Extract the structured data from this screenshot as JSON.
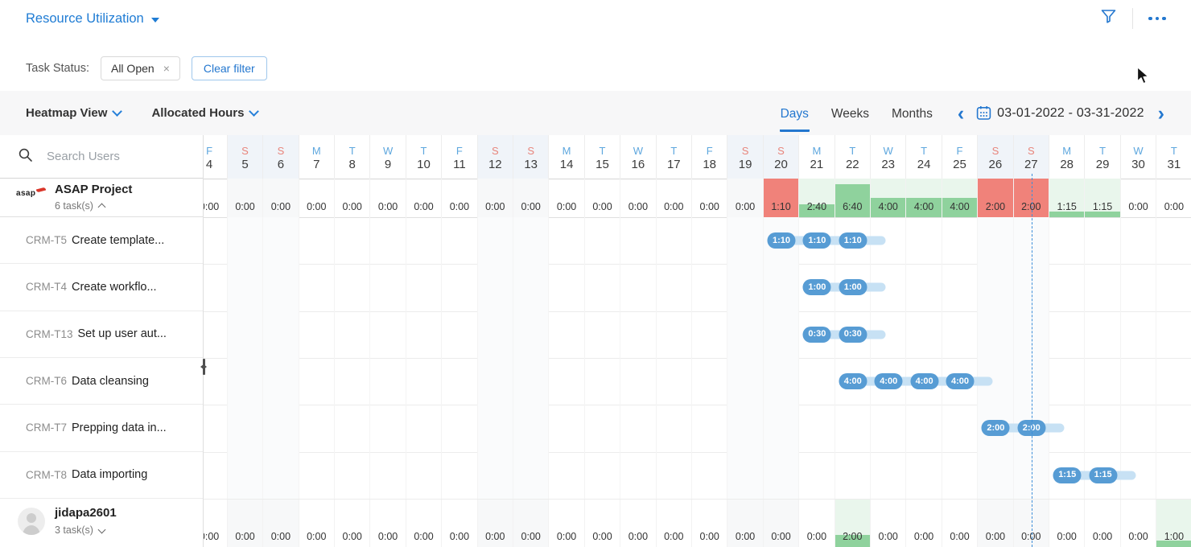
{
  "header": {
    "title": "Resource Utilization",
    "icons": {
      "filter": "funnel-icon",
      "more": "ellipsis-icon"
    }
  },
  "filters": {
    "label": "Task Status:",
    "chip_label": "All Open",
    "chip_close_glyph": "×",
    "clear_label": "Clear filter"
  },
  "toolbar": {
    "view_dropdown": "Heatmap View",
    "metric_dropdown": "Allocated Hours",
    "tabs": [
      {
        "label": "Days",
        "active": true
      },
      {
        "label": "Weeks",
        "active": false
      },
      {
        "label": "Months",
        "active": false
      }
    ],
    "prev_glyph": "‹",
    "next_glyph": "›",
    "date_range": "03-01-2022 - 03-31-2022"
  },
  "sidebar": {
    "search_placeholder": "Search Users",
    "project": {
      "logo_text": "asap",
      "name": "ASAP Project",
      "meta": "6 task(s)",
      "collapse_state": "expanded"
    },
    "tasks": [
      {
        "id": "CRM-T5",
        "name": "Create template..."
      },
      {
        "id": "CRM-T4",
        "name": "Create workflo..."
      },
      {
        "id": "CRM-T13",
        "name": "Set up user aut..."
      },
      {
        "id": "CRM-T6",
        "name": "Data cleansing"
      },
      {
        "id": "CRM-T7",
        "name": "Prepping data in..."
      },
      {
        "id": "CRM-T8",
        "name": "Data importing"
      }
    ],
    "user": {
      "name": "jidapa2601",
      "meta": "3 task(s)",
      "collapse_state": "collapsed"
    }
  },
  "colors": {
    "accent_blue": "#2377cf",
    "overallocated_red": "#f0827a",
    "allocation_green": "#8fd29d",
    "allocation_green_bg": "#e9f6ec",
    "pill_blue": "#579cd4",
    "pill_tail_blue": "#c7e1f4",
    "weekend_letter": "#e8857c",
    "weekday_letter": "#5ea7de"
  },
  "chart_data": {
    "type": "heatmap",
    "metric": "Allocated Hours",
    "period": "03-01-2022 - 03-31-2022",
    "today_date": 27,
    "columns": [
      {
        "dow": "F",
        "date": 4,
        "weekend": false
      },
      {
        "dow": "S",
        "date": 5,
        "weekend": true
      },
      {
        "dow": "S",
        "date": 6,
        "weekend": true
      },
      {
        "dow": "M",
        "date": 7,
        "weekend": false
      },
      {
        "dow": "T",
        "date": 8,
        "weekend": false
      },
      {
        "dow": "W",
        "date": 9,
        "weekend": false
      },
      {
        "dow": "T",
        "date": 10,
        "weekend": false
      },
      {
        "dow": "F",
        "date": 11,
        "weekend": false
      },
      {
        "dow": "S",
        "date": 12,
        "weekend": true
      },
      {
        "dow": "S",
        "date": 13,
        "weekend": true
      },
      {
        "dow": "M",
        "date": 14,
        "weekend": false
      },
      {
        "dow": "T",
        "date": 15,
        "weekend": false
      },
      {
        "dow": "W",
        "date": 16,
        "weekend": false
      },
      {
        "dow": "T",
        "date": 17,
        "weekend": false
      },
      {
        "dow": "F",
        "date": 18,
        "weekend": false
      },
      {
        "dow": "S",
        "date": 19,
        "weekend": true
      },
      {
        "dow": "S",
        "date": 20,
        "weekend": true
      },
      {
        "dow": "M",
        "date": 21,
        "weekend": false
      },
      {
        "dow": "T",
        "date": 22,
        "weekend": false
      },
      {
        "dow": "W",
        "date": 23,
        "weekend": false
      },
      {
        "dow": "T",
        "date": 24,
        "weekend": false
      },
      {
        "dow": "F",
        "date": 25,
        "weekend": false
      },
      {
        "dow": "S",
        "date": 26,
        "weekend": true
      },
      {
        "dow": "S",
        "date": 27,
        "weekend": true
      },
      {
        "dow": "M",
        "date": 28,
        "weekend": false
      },
      {
        "dow": "T",
        "date": 29,
        "weekend": false
      },
      {
        "dow": "W",
        "date": 30,
        "weekend": false
      },
      {
        "dow": "T",
        "date": 31,
        "weekend": false
      }
    ],
    "project_allocation": [
      {
        "date": 4,
        "value": "0:00",
        "state": "empty",
        "fill": 0
      },
      {
        "date": 5,
        "value": "0:00",
        "state": "empty",
        "fill": 0
      },
      {
        "date": 6,
        "value": "0:00",
        "state": "empty",
        "fill": 0
      },
      {
        "date": 7,
        "value": "0:00",
        "state": "empty",
        "fill": 0
      },
      {
        "date": 8,
        "value": "0:00",
        "state": "empty",
        "fill": 0
      },
      {
        "date": 9,
        "value": "0:00",
        "state": "empty",
        "fill": 0
      },
      {
        "date": 10,
        "value": "0:00",
        "state": "empty",
        "fill": 0
      },
      {
        "date": 11,
        "value": "0:00",
        "state": "empty",
        "fill": 0
      },
      {
        "date": 12,
        "value": "0:00",
        "state": "empty",
        "fill": 0
      },
      {
        "date": 13,
        "value": "0:00",
        "state": "empty",
        "fill": 0
      },
      {
        "date": 14,
        "value": "0:00",
        "state": "empty",
        "fill": 0
      },
      {
        "date": 15,
        "value": "0:00",
        "state": "empty",
        "fill": 0
      },
      {
        "date": 16,
        "value": "0:00",
        "state": "empty",
        "fill": 0
      },
      {
        "date": 17,
        "value": "0:00",
        "state": "empty",
        "fill": 0
      },
      {
        "date": 18,
        "value": "0:00",
        "state": "empty",
        "fill": 0
      },
      {
        "date": 19,
        "value": "0:00",
        "state": "empty",
        "fill": 0
      },
      {
        "date": 20,
        "value": "1:10",
        "state": "over",
        "fill": 100
      },
      {
        "date": 21,
        "value": "2:40",
        "state": "fill",
        "fill": 33
      },
      {
        "date": 22,
        "value": "6:40",
        "state": "fill",
        "fill": 85
      },
      {
        "date": 23,
        "value": "4:00",
        "state": "fill",
        "fill": 50
      },
      {
        "date": 24,
        "value": "4:00",
        "state": "fill",
        "fill": 50
      },
      {
        "date": 25,
        "value": "4:00",
        "state": "fill",
        "fill": 50
      },
      {
        "date": 26,
        "value": "2:00",
        "state": "over",
        "fill": 100
      },
      {
        "date": 27,
        "value": "2:00",
        "state": "over",
        "fill": 100
      },
      {
        "date": 28,
        "value": "1:15",
        "state": "fill",
        "fill": 15
      },
      {
        "date": 29,
        "value": "1:15",
        "state": "fill",
        "fill": 15
      },
      {
        "date": 30,
        "value": "0:00",
        "state": "empty",
        "fill": 0
      },
      {
        "date": 31,
        "value": "0:00",
        "state": "empty",
        "fill": 0
      }
    ],
    "task_bars": [
      {
        "task": "CRM-T5",
        "value": "1:10",
        "dates": [
          20,
          21,
          22
        ]
      },
      {
        "task": "CRM-T4",
        "value": "1:00",
        "dates": [
          21,
          22
        ]
      },
      {
        "task": "CRM-T13",
        "value": "0:30",
        "dates": [
          21,
          22
        ]
      },
      {
        "task": "CRM-T6",
        "value": "4:00",
        "dates": [
          22,
          23,
          24,
          25
        ]
      },
      {
        "task": "CRM-T7",
        "value": "2:00",
        "dates": [
          26,
          27
        ]
      },
      {
        "task": "CRM-T8",
        "value": "1:15",
        "dates": [
          28,
          29
        ]
      }
    ],
    "user_allocation": [
      {
        "date": 4,
        "value": "0:00",
        "state": "empty",
        "fill": 0
      },
      {
        "date": 5,
        "value": "0:00",
        "state": "empty",
        "fill": 0
      },
      {
        "date": 6,
        "value": "0:00",
        "state": "empty",
        "fill": 0
      },
      {
        "date": 7,
        "value": "0:00",
        "state": "empty",
        "fill": 0
      },
      {
        "date": 8,
        "value": "0:00",
        "state": "empty",
        "fill": 0
      },
      {
        "date": 9,
        "value": "0:00",
        "state": "empty",
        "fill": 0
      },
      {
        "date": 10,
        "value": "0:00",
        "state": "empty",
        "fill": 0
      },
      {
        "date": 11,
        "value": "0:00",
        "state": "empty",
        "fill": 0
      },
      {
        "date": 12,
        "value": "0:00",
        "state": "empty",
        "fill": 0
      },
      {
        "date": 13,
        "value": "0:00",
        "state": "empty",
        "fill": 0
      },
      {
        "date": 14,
        "value": "0:00",
        "state": "empty",
        "fill": 0
      },
      {
        "date": 15,
        "value": "0:00",
        "state": "empty",
        "fill": 0
      },
      {
        "date": 16,
        "value": "0:00",
        "state": "empty",
        "fill": 0
      },
      {
        "date": 17,
        "value": "0:00",
        "state": "empty",
        "fill": 0
      },
      {
        "date": 18,
        "value": "0:00",
        "state": "empty",
        "fill": 0
      },
      {
        "date": 19,
        "value": "0:00",
        "state": "empty",
        "fill": 0
      },
      {
        "date": 20,
        "value": "0:00",
        "state": "empty",
        "fill": 0
      },
      {
        "date": 21,
        "value": "0:00",
        "state": "empty",
        "fill": 0
      },
      {
        "date": 22,
        "value": "2:00",
        "state": "fill",
        "fill": 25
      },
      {
        "date": 23,
        "value": "0:00",
        "state": "empty",
        "fill": 0
      },
      {
        "date": 24,
        "value": "0:00",
        "state": "empty",
        "fill": 0
      },
      {
        "date": 25,
        "value": "0:00",
        "state": "empty",
        "fill": 0
      },
      {
        "date": 26,
        "value": "0:00",
        "state": "empty",
        "fill": 0
      },
      {
        "date": 27,
        "value": "0:00",
        "state": "empty",
        "fill": 0
      },
      {
        "date": 28,
        "value": "0:00",
        "state": "empty",
        "fill": 0
      },
      {
        "date": 29,
        "value": "0:00",
        "state": "empty",
        "fill": 0
      },
      {
        "date": 30,
        "value": "0:00",
        "state": "empty",
        "fill": 0
      },
      {
        "date": 31,
        "value": "1:00",
        "state": "fill",
        "fill": 13
      }
    ]
  }
}
